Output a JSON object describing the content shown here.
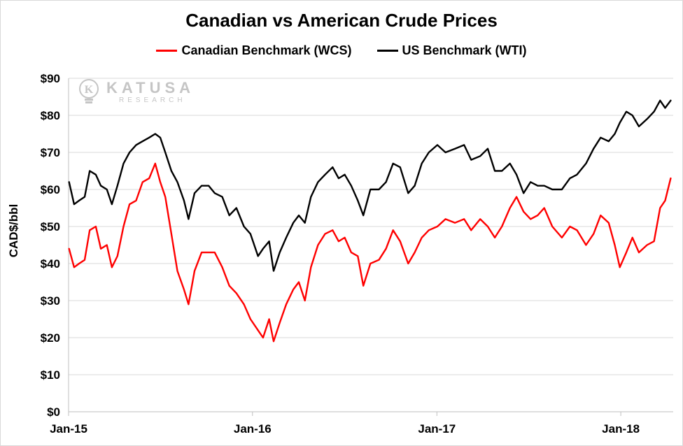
{
  "chart_data": {
    "type": "line",
    "title": "Canadian vs American Crude Prices",
    "ylabel": "CAD$/bbl",
    "xlabel": "",
    "ylim": [
      0,
      90
    ],
    "xlim": [
      "2015-01-01",
      "2018-04-15"
    ],
    "y_ticks": [
      "$0",
      "$10",
      "$20",
      "$30",
      "$40",
      "$50",
      "$60",
      "$70",
      "$80",
      "$90"
    ],
    "y_tick_values": [
      0,
      10,
      20,
      30,
      40,
      50,
      60,
      70,
      80,
      90
    ],
    "x_ticks": [
      "Jan-15",
      "Jan-16",
      "Jan-17",
      "Jan-18"
    ],
    "x_tick_dates": [
      "2015-01-01",
      "2016-01-01",
      "2017-01-01",
      "2018-01-01"
    ],
    "grid": "horizontal",
    "legend_position": "top",
    "series": [
      {
        "name": "Canadian Benchmark (WCS)",
        "color": "#ff0000",
        "points": [
          [
            "2015-01-02",
            44
          ],
          [
            "2015-01-12",
            39
          ],
          [
            "2015-01-22",
            40
          ],
          [
            "2015-02-02",
            41
          ],
          [
            "2015-02-12",
            49
          ],
          [
            "2015-02-24",
            50
          ],
          [
            "2015-03-06",
            44
          ],
          [
            "2015-03-18",
            45
          ],
          [
            "2015-03-28",
            39
          ],
          [
            "2015-04-08",
            42
          ],
          [
            "2015-04-20",
            50
          ],
          [
            "2015-05-02",
            56
          ],
          [
            "2015-05-15",
            57
          ],
          [
            "2015-05-28",
            62
          ],
          [
            "2015-06-10",
            63
          ],
          [
            "2015-06-22",
            67
          ],
          [
            "2015-07-02",
            62
          ],
          [
            "2015-07-12",
            58
          ],
          [
            "2015-07-24",
            48
          ],
          [
            "2015-08-05",
            38
          ],
          [
            "2015-08-18",
            33
          ],
          [
            "2015-08-27",
            29
          ],
          [
            "2015-09-08",
            38
          ],
          [
            "2015-09-22",
            43
          ],
          [
            "2015-10-06",
            43
          ],
          [
            "2015-10-18",
            43
          ],
          [
            "2015-11-02",
            39
          ],
          [
            "2015-11-16",
            34
          ],
          [
            "2015-11-30",
            32
          ],
          [
            "2015-12-15",
            29
          ],
          [
            "2015-12-28",
            25
          ],
          [
            "2016-01-12",
            22
          ],
          [
            "2016-01-22",
            20
          ],
          [
            "2016-02-03",
            25
          ],
          [
            "2016-02-12",
            19
          ],
          [
            "2016-02-24",
            24
          ],
          [
            "2016-03-08",
            29
          ],
          [
            "2016-03-22",
            33
          ],
          [
            "2016-04-02",
            35
          ],
          [
            "2016-04-14",
            30
          ],
          [
            "2016-04-26",
            39
          ],
          [
            "2016-05-10",
            45
          ],
          [
            "2016-05-24",
            48
          ],
          [
            "2016-06-08",
            49
          ],
          [
            "2016-06-20",
            46
          ],
          [
            "2016-07-02",
            47
          ],
          [
            "2016-07-15",
            43
          ],
          [
            "2016-07-28",
            42
          ],
          [
            "2016-08-08",
            34
          ],
          [
            "2016-08-22",
            40
          ],
          [
            "2016-09-08",
            41
          ],
          [
            "2016-09-22",
            44
          ],
          [
            "2016-10-06",
            49
          ],
          [
            "2016-10-20",
            46
          ],
          [
            "2016-11-05",
            40
          ],
          [
            "2016-11-18",
            43
          ],
          [
            "2016-12-02",
            47
          ],
          [
            "2016-12-16",
            49
          ],
          [
            "2017-01-02",
            50
          ],
          [
            "2017-01-18",
            52
          ],
          [
            "2017-02-06",
            51
          ],
          [
            "2017-02-24",
            52
          ],
          [
            "2017-03-10",
            49
          ],
          [
            "2017-03-28",
            52
          ],
          [
            "2017-04-12",
            50
          ],
          [
            "2017-04-26",
            47
          ],
          [
            "2017-05-10",
            50
          ],
          [
            "2017-05-26",
            55
          ],
          [
            "2017-06-08",
            58
          ],
          [
            "2017-06-22",
            54
          ],
          [
            "2017-07-06",
            52
          ],
          [
            "2017-07-20",
            53
          ],
          [
            "2017-08-02",
            55
          ],
          [
            "2017-08-18",
            50
          ],
          [
            "2017-09-06",
            47
          ],
          [
            "2017-09-22",
            50
          ],
          [
            "2017-10-06",
            49
          ],
          [
            "2017-10-24",
            45
          ],
          [
            "2017-11-08",
            48
          ],
          [
            "2017-11-22",
            53
          ],
          [
            "2017-12-08",
            51
          ],
          [
            "2017-12-20",
            45
          ],
          [
            "2017-12-30",
            39
          ],
          [
            "2018-01-12",
            43
          ],
          [
            "2018-01-24",
            47
          ],
          [
            "2018-02-06",
            43
          ],
          [
            "2018-02-22",
            45
          ],
          [
            "2018-03-08",
            46
          ],
          [
            "2018-03-20",
            55
          ],
          [
            "2018-03-30",
            57
          ],
          [
            "2018-04-10",
            63
          ]
        ]
      },
      {
        "name": "US Benchmark (WTI)",
        "color": "#000000",
        "points": [
          [
            "2015-01-02",
            62
          ],
          [
            "2015-01-12",
            56
          ],
          [
            "2015-01-22",
            57
          ],
          [
            "2015-02-02",
            58
          ],
          [
            "2015-02-12",
            65
          ],
          [
            "2015-02-24",
            64
          ],
          [
            "2015-03-06",
            61
          ],
          [
            "2015-03-18",
            60
          ],
          [
            "2015-03-28",
            56
          ],
          [
            "2015-04-08",
            61
          ],
          [
            "2015-04-20",
            67
          ],
          [
            "2015-05-02",
            70
          ],
          [
            "2015-05-15",
            72
          ],
          [
            "2015-05-28",
            73
          ],
          [
            "2015-06-10",
            74
          ],
          [
            "2015-06-22",
            75
          ],
          [
            "2015-07-02",
            74
          ],
          [
            "2015-07-12",
            70
          ],
          [
            "2015-07-24",
            65
          ],
          [
            "2015-08-05",
            62
          ],
          [
            "2015-08-18",
            57
          ],
          [
            "2015-08-27",
            52
          ],
          [
            "2015-09-08",
            59
          ],
          [
            "2015-09-22",
            61
          ],
          [
            "2015-10-06",
            61
          ],
          [
            "2015-10-18",
            59
          ],
          [
            "2015-11-02",
            58
          ],
          [
            "2015-11-16",
            53
          ],
          [
            "2015-11-30",
            55
          ],
          [
            "2015-12-15",
            50
          ],
          [
            "2015-12-28",
            48
          ],
          [
            "2016-01-12",
            42
          ],
          [
            "2016-01-22",
            44
          ],
          [
            "2016-02-03",
            46
          ],
          [
            "2016-02-12",
            38
          ],
          [
            "2016-02-24",
            43
          ],
          [
            "2016-03-08",
            47
          ],
          [
            "2016-03-22",
            51
          ],
          [
            "2016-04-02",
            53
          ],
          [
            "2016-04-14",
            51
          ],
          [
            "2016-04-26",
            58
          ],
          [
            "2016-05-10",
            62
          ],
          [
            "2016-05-24",
            64
          ],
          [
            "2016-06-08",
            66
          ],
          [
            "2016-06-20",
            63
          ],
          [
            "2016-07-02",
            64
          ],
          [
            "2016-07-15",
            61
          ],
          [
            "2016-07-28",
            57
          ],
          [
            "2016-08-08",
            53
          ],
          [
            "2016-08-22",
            60
          ],
          [
            "2016-09-08",
            60
          ],
          [
            "2016-09-22",
            62
          ],
          [
            "2016-10-06",
            67
          ],
          [
            "2016-10-20",
            66
          ],
          [
            "2016-11-05",
            59
          ],
          [
            "2016-11-18",
            61
          ],
          [
            "2016-12-02",
            67
          ],
          [
            "2016-12-16",
            70
          ],
          [
            "2017-01-02",
            72
          ],
          [
            "2017-01-18",
            70
          ],
          [
            "2017-02-06",
            71
          ],
          [
            "2017-02-24",
            72
          ],
          [
            "2017-03-10",
            68
          ],
          [
            "2017-03-28",
            69
          ],
          [
            "2017-04-12",
            71
          ],
          [
            "2017-04-26",
            65
          ],
          [
            "2017-05-10",
            65
          ],
          [
            "2017-05-26",
            67
          ],
          [
            "2017-06-08",
            64
          ],
          [
            "2017-06-22",
            59
          ],
          [
            "2017-07-06",
            62
          ],
          [
            "2017-07-20",
            61
          ],
          [
            "2017-08-02",
            61
          ],
          [
            "2017-08-18",
            60
          ],
          [
            "2017-09-06",
            60
          ],
          [
            "2017-09-22",
            63
          ],
          [
            "2017-10-06",
            64
          ],
          [
            "2017-10-24",
            67
          ],
          [
            "2017-11-08",
            71
          ],
          [
            "2017-11-22",
            74
          ],
          [
            "2017-12-08",
            73
          ],
          [
            "2017-12-20",
            75
          ],
          [
            "2017-12-30",
            78
          ],
          [
            "2018-01-12",
            81
          ],
          [
            "2018-01-24",
            80
          ],
          [
            "2018-02-06",
            77
          ],
          [
            "2018-02-22",
            79
          ],
          [
            "2018-03-08",
            81
          ],
          [
            "2018-03-20",
            84
          ],
          [
            "2018-03-30",
            82
          ],
          [
            "2018-04-10",
            84
          ]
        ]
      }
    ]
  },
  "watermark": {
    "name": "KATUSA",
    "sub": "RESEARCH"
  }
}
